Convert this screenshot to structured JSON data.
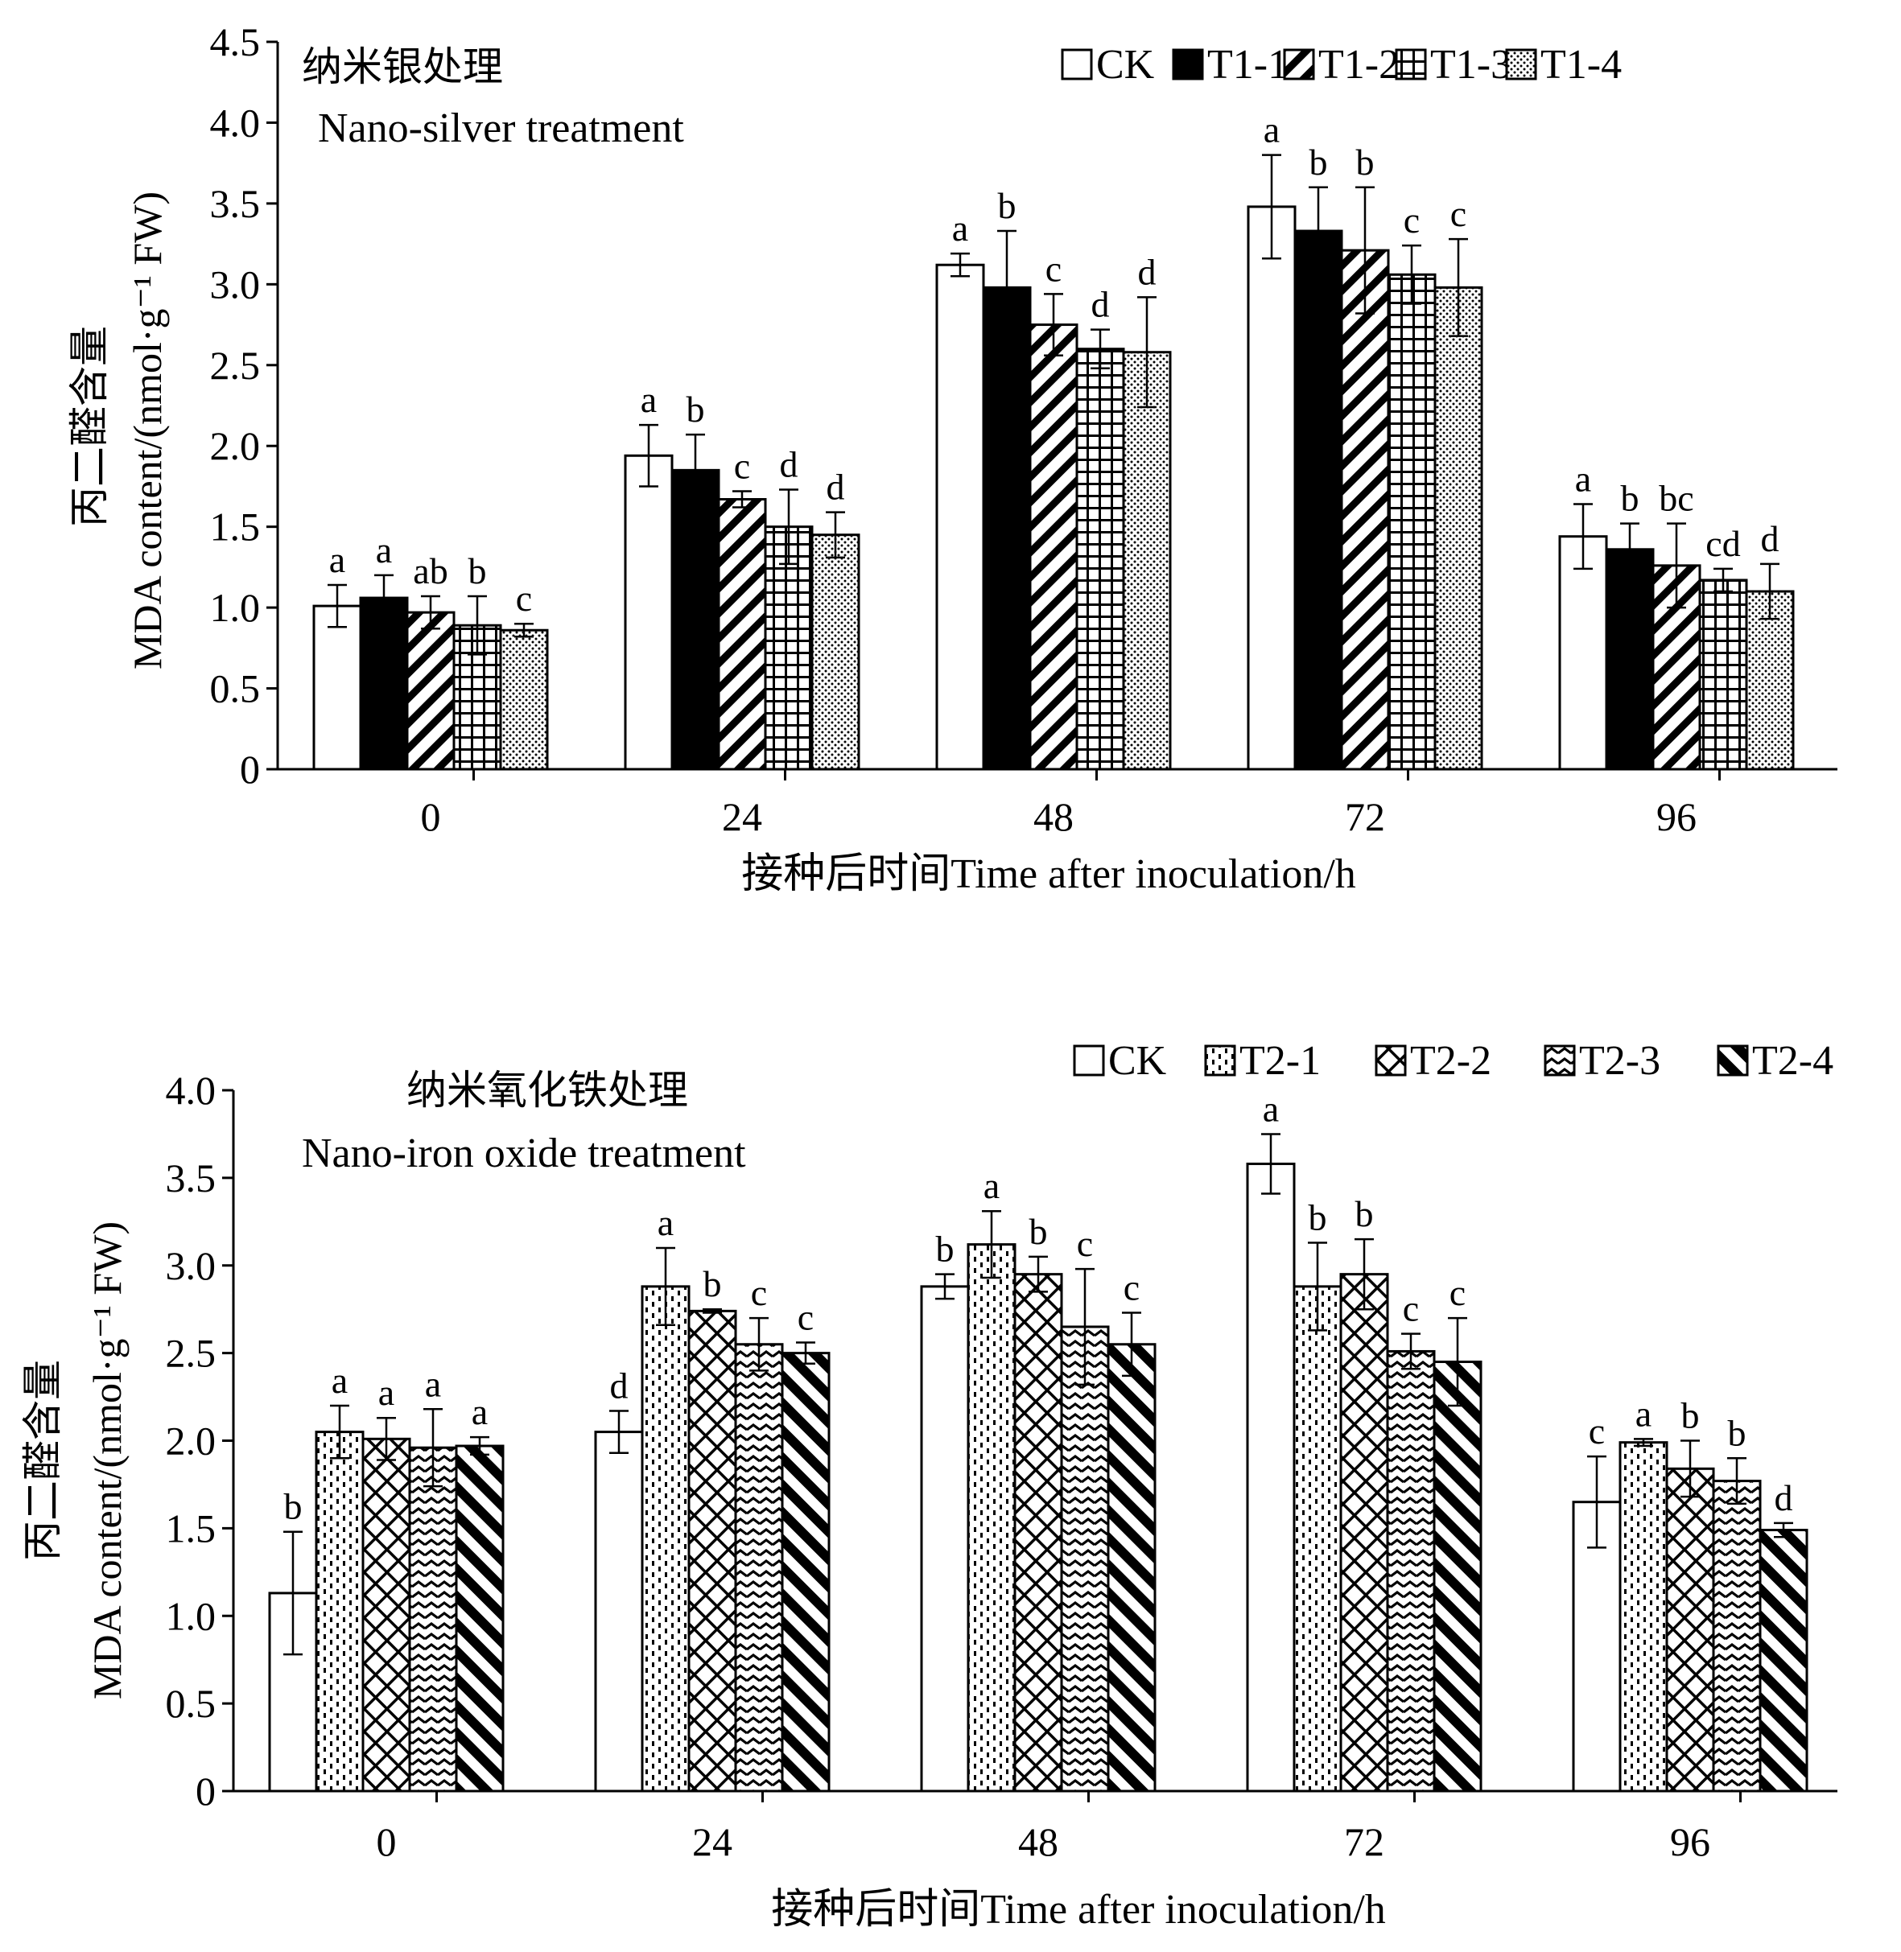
{
  "chart_data": [
    {
      "type": "bar",
      "title": "纳米银处理",
      "subtitle": "Nano-silver treatment",
      "xlabel": "接种后时间Time after inoculation/h",
      "ylabel_cn": "丙二醛含量",
      "ylabel": "MDA content/(nmol·g⁻¹ FW)",
      "ylim": [
        0,
        4.5
      ],
      "yticks": [
        "0",
        "0.5",
        "1.0",
        "1.5",
        "2.0",
        "2.5",
        "3.0",
        "3.5",
        "4.0",
        "4.5"
      ],
      "categories": [
        "0",
        "24",
        "48",
        "72",
        "96"
      ],
      "legend_position": "top-right",
      "grid": false,
      "series": [
        {
          "name": "CK",
          "pattern": "white",
          "values": [
            1.01,
            1.94,
            3.12,
            3.48,
            1.44
          ],
          "errors": [
            0.13,
            0.19,
            0.07,
            0.32,
            0.2
          ],
          "letters": [
            "a",
            "a",
            "a",
            "a",
            "a"
          ]
        },
        {
          "name": "T1-1",
          "pattern": "solid",
          "values": [
            1.06,
            1.85,
            2.98,
            3.33,
            1.36
          ],
          "errors": [
            0.14,
            0.22,
            0.35,
            0.27,
            0.16
          ],
          "letters": [
            "a",
            "b",
            "b",
            "b",
            "b"
          ]
        },
        {
          "name": "T1-2",
          "pattern": "diag",
          "values": [
            0.97,
            1.67,
            2.75,
            3.21,
            1.26
          ],
          "errors": [
            0.1,
            0.05,
            0.19,
            0.39,
            0.26
          ],
          "letters": [
            "ab",
            "c",
            "c",
            "b",
            "bc"
          ]
        },
        {
          "name": "T1-3",
          "pattern": "grid",
          "values": [
            0.89,
            1.5,
            2.6,
            3.06,
            1.17
          ],
          "errors": [
            0.18,
            0.23,
            0.12,
            0.18,
            0.07
          ],
          "letters": [
            "b",
            "d",
            "d",
            "c",
            "cd"
          ]
        },
        {
          "name": "T1-4",
          "pattern": "dots",
          "values": [
            0.86,
            1.45,
            2.58,
            2.98,
            1.1
          ],
          "errors": [
            0.04,
            0.14,
            0.34,
            0.3,
            0.17
          ],
          "letters": [
            "c",
            "d",
            "d",
            "c",
            "d"
          ]
        }
      ]
    },
    {
      "type": "bar",
      "title": "纳米氧化铁处理",
      "subtitle": "Nano-iron oxide treatment",
      "xlabel": "接种后时间Time after inoculation/h",
      "ylabel_cn": "丙二醛含量",
      "ylabel": "MDA content/(nmol·g⁻¹ FW)",
      "ylim": [
        0,
        4.0
      ],
      "yticks": [
        "0",
        "0.5",
        "1.0",
        "1.5",
        "2.0",
        "2.5",
        "3.0",
        "3.5",
        "4.0"
      ],
      "categories": [
        "0",
        "24",
        "48",
        "72",
        "96"
      ],
      "legend_position": "top-right",
      "grid": false,
      "series": [
        {
          "name": "CK",
          "pattern": "white",
          "values": [
            1.13,
            2.05,
            2.88,
            3.58,
            1.65
          ],
          "errors": [
            0.35,
            0.12,
            0.07,
            0.17,
            0.26
          ],
          "letters": [
            "b",
            "d",
            "b",
            "a",
            "c"
          ]
        },
        {
          "name": "T2-1",
          "pattern": "dashes",
          "values": [
            2.05,
            2.88,
            3.12,
            2.88,
            1.99
          ],
          "errors": [
            0.15,
            0.22,
            0.19,
            0.25,
            0.02
          ],
          "letters": [
            "a",
            "a",
            "a",
            "b",
            "a"
          ]
        },
        {
          "name": "T2-2",
          "pattern": "crosshatch",
          "values": [
            2.01,
            2.74,
            2.95,
            2.95,
            1.84
          ],
          "errors": [
            0.12,
            0.01,
            0.1,
            0.2,
            0.16
          ],
          "letters": [
            "a",
            "b",
            "b",
            "b",
            "b"
          ]
        },
        {
          "name": "T2-3",
          "pattern": "zigzag",
          "values": [
            1.96,
            2.55,
            2.65,
            2.51,
            1.77
          ],
          "errors": [
            0.22,
            0.15,
            0.33,
            0.1,
            0.13
          ],
          "letters": [
            "a",
            "c",
            "c",
            "c",
            "b"
          ]
        },
        {
          "name": "T2-4",
          "pattern": "thickdiag",
          "values": [
            1.97,
            2.5,
            2.55,
            2.45,
            1.49
          ],
          "errors": [
            0.05,
            0.06,
            0.18,
            0.25,
            0.04
          ],
          "letters": [
            "a",
            "c",
            "c",
            "c",
            "d"
          ]
        }
      ]
    }
  ]
}
